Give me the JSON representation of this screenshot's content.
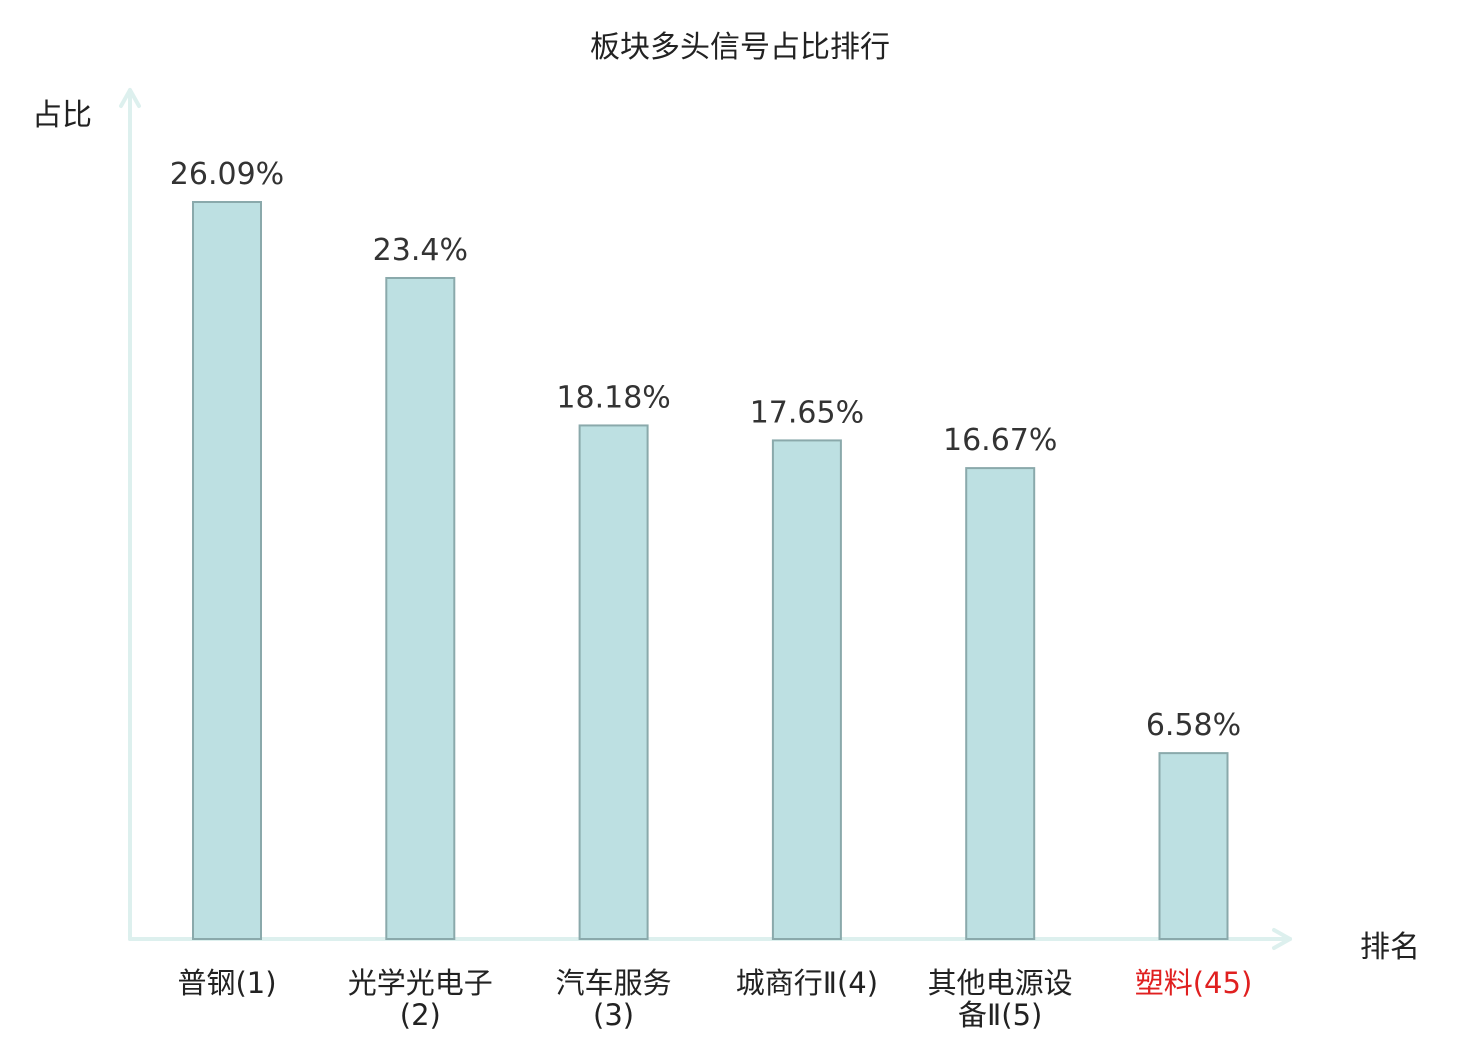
{
  "chart_data": {
    "type": "bar",
    "title": "板块多头信号占比排行",
    "ylabel": "占比",
    "xlabel": "排名",
    "categories": [
      "普钢(1)",
      "光学光电子(2)",
      "汽车服务(3)",
      "城商行Ⅱ(4)",
      "其他电源设备Ⅱ(5)",
      "塑料(45)"
    ],
    "values": [
      26.09,
      23.4,
      18.18,
      17.65,
      16.67,
      6.58
    ],
    "value_labels": [
      "26.09%",
      "23.4%",
      "18.18%",
      "17.65%",
      "16.67%",
      "6.58%"
    ],
    "highlight_index": 5,
    "grid": false,
    "colors": {
      "bar_fill": "#bde0e2",
      "bar_stroke": "#8aa9ab",
      "axis": "#ddf0ee",
      "highlight_label": "#e02020",
      "label": "#222222"
    }
  }
}
